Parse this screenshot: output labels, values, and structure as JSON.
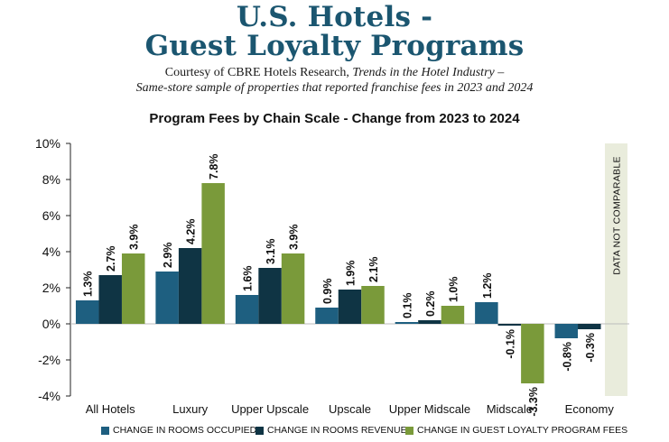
{
  "header": {
    "title_line1": "U.S. Hotels -",
    "title_line2": "Guest Loyalty Programs",
    "credit_prefix": "Courtesy of CBRE Hotels Research, ",
    "credit_italic": "Trends in the Hotel Industry",
    "credit_suffix": " –",
    "credit_line2": "Same-store sample of properties that reported franchise fees in 2023 and 2024"
  },
  "chart_data": {
    "type": "bar",
    "title": "Program Fees by Chain Scale - Change from 2023 to 2024",
    "xlabel": "",
    "ylabel": "",
    "ylim": [
      -4,
      10
    ],
    "yticks": [
      "-4%",
      "-2%",
      "0%",
      "2%",
      "4%",
      "6%",
      "8%",
      "10%"
    ],
    "ytick_values": [
      -4,
      -2,
      0,
      2,
      4,
      6,
      8,
      10
    ],
    "categories": [
      "All Hotels",
      "Luxury",
      "Upper Upscale",
      "Upscale",
      "Upper Midscale",
      "Midscale",
      "Economy"
    ],
    "series": [
      {
        "name": "CHANGE IN ROOMS OCCUPIED",
        "color": "#1e5f80",
        "values": [
          1.3,
          2.9,
          1.6,
          0.9,
          0.1,
          1.2,
          -0.8
        ],
        "labels": [
          "1.3%",
          "2.9%",
          "1.6%",
          "0.9%",
          "0.1%",
          "1.2%",
          "-0.8%"
        ]
      },
      {
        "name": "CHANGE IN ROOMS REVENUE",
        "color": "#0f3444",
        "values": [
          2.7,
          4.2,
          3.1,
          1.9,
          0.2,
          -0.1,
          -0.3
        ],
        "labels": [
          "2.7%",
          "4.2%",
          "3.1%",
          "1.9%",
          "0.2%",
          "-0.1%",
          "-0.3%"
        ]
      },
      {
        "name": "CHANGE IN GUEST LOYALTY PROGRAM FEES",
        "color": "#7a9a3a",
        "values": [
          3.9,
          7.8,
          3.9,
          2.1,
          1.0,
          -3.3,
          null
        ],
        "labels": [
          "3.9%",
          "7.8%",
          "3.9%",
          "2.1%",
          "1.0%",
          "-3.3%",
          ""
        ]
      }
    ],
    "annotation": "DATA NOT COMPARABLE",
    "annotation_color": "#e9ecdc",
    "legend_position": "bottom",
    "grid": false
  }
}
